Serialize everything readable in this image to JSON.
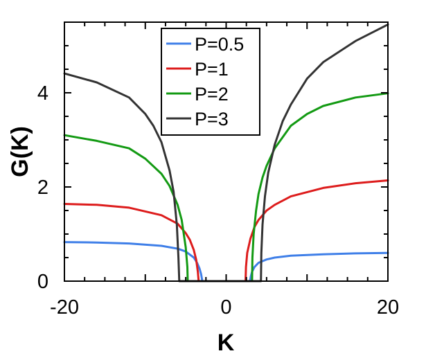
{
  "chart_data": {
    "type": "line",
    "title": "",
    "xlabel": "K",
    "ylabel": "G(K)",
    "xlim": [
      -20,
      20
    ],
    "ylim": [
      0,
      5.5
    ],
    "x_ticks": [
      -20,
      0,
      20
    ],
    "x_tick_labels": [
      "-20",
      "0",
      "20"
    ],
    "y_ticks": [
      0,
      2,
      4
    ],
    "y_tick_labels": [
      "0",
      "2",
      "4"
    ],
    "grid": false,
    "legend_position": "top-center",
    "series": [
      {
        "name": "P=0.5",
        "color": "#3f7fe8",
        "x": [
          -20,
          -16,
          -12,
          -8,
          -6,
          -5,
          -4,
          -3.6,
          -3.3,
          -3.1,
          -2.95,
          2.95,
          3.05,
          3.2,
          3.5,
          4,
          5,
          6,
          8,
          12,
          16,
          20
        ],
        "y": [
          0.83,
          0.82,
          0.8,
          0.75,
          0.69,
          0.63,
          0.5,
          0.39,
          0.27,
          0.15,
          0,
          0,
          0.1,
          0.2,
          0.3,
          0.39,
          0.46,
          0.5,
          0.54,
          0.57,
          0.59,
          0.6
        ]
      },
      {
        "name": "P=1",
        "color": "#dd1c1c",
        "x": [
          -20,
          -16,
          -12,
          -8,
          -6,
          -5,
          -4.5,
          -4,
          -3.7,
          -3.5,
          -3.4,
          2.4,
          2.45,
          2.6,
          3,
          3.5,
          4,
          5,
          6,
          8,
          12,
          16,
          20
        ],
        "y": [
          1.64,
          1.62,
          1.56,
          1.4,
          1.22,
          1.02,
          0.88,
          0.66,
          0.45,
          0.2,
          0,
          0,
          0.3,
          0.6,
          0.9,
          1.15,
          1.3,
          1.5,
          1.62,
          1.8,
          1.98,
          2.08,
          2.14
        ]
      },
      {
        "name": "P=2",
        "color": "#139a13",
        "x": [
          -20,
          -16,
          -12,
          -10,
          -8,
          -7,
          -6,
          -5.5,
          -5,
          -4.8,
          -4.75,
          3.2,
          3.25,
          3.4,
          3.7,
          4,
          4.5,
          5,
          6,
          8,
          10,
          12,
          16,
          20
        ],
        "y": [
          3.1,
          2.98,
          2.82,
          2.6,
          2.28,
          2.02,
          1.62,
          1.3,
          0.72,
          0.3,
          0,
          0,
          0.5,
          1.0,
          1.5,
          1.85,
          2.2,
          2.45,
          2.82,
          3.3,
          3.55,
          3.72,
          3.9,
          3.99
        ]
      },
      {
        "name": "P=3",
        "color": "#333333",
        "x": [
          -20,
          -16,
          -12,
          -10,
          -9,
          -8,
          -7,
          -6.5,
          -6.1,
          -5.9,
          -5.8,
          4.3,
          4.35,
          4.5,
          4.8,
          5.2,
          6,
          7,
          8,
          10,
          12,
          16,
          20
        ],
        "y": [
          4.41,
          4.22,
          3.9,
          3.55,
          3.3,
          2.95,
          2.35,
          1.9,
          1.2,
          0.5,
          0,
          0,
          0.6,
          1.2,
          1.8,
          2.3,
          2.9,
          3.4,
          3.75,
          4.3,
          4.65,
          5.1,
          5.45
        ]
      }
    ]
  }
}
